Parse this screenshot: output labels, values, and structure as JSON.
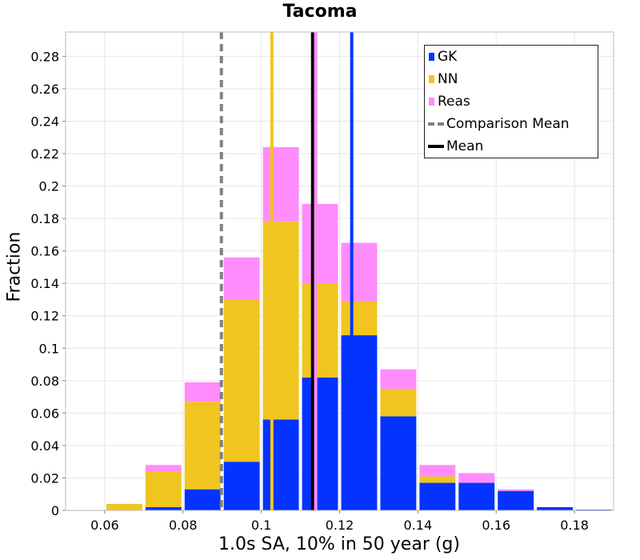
{
  "chart_data": {
    "type": "bar",
    "stacked": true,
    "title": "Tacoma",
    "xlabel": "1.0s SA, 10% in 50 year (g)",
    "ylabel": "Fraction",
    "xlim": [
      0.05,
      0.19
    ],
    "ylim": [
      0,
      0.295
    ],
    "bin_width": 0.01,
    "x": [
      0.065,
      0.075,
      0.085,
      0.095,
      0.105,
      0.115,
      0.125,
      0.135,
      0.145,
      0.155,
      0.165,
      0.175,
      0.185
    ],
    "series": [
      {
        "name": "GK",
        "color": "#0433ff",
        "values": [
          0.0,
          0.002,
          0.013,
          0.03,
          0.056,
          0.082,
          0.108,
          0.058,
          0.017,
          0.017,
          0.012,
          0.002,
          0.0005
        ]
      },
      {
        "name": "NN",
        "color": "#f0c520",
        "values": [
          0.004,
          0.022,
          0.054,
          0.1,
          0.122,
          0.058,
          0.021,
          0.017,
          0.004,
          0.0,
          0.0,
          0.0,
          0.0
        ]
      },
      {
        "name": "Reas",
        "color": "#ff8cfc",
        "values": [
          0.0,
          0.004,
          0.012,
          0.026,
          0.046,
          0.049,
          0.036,
          0.012,
          0.007,
          0.006,
          0.001,
          0.0,
          0.0
        ]
      }
    ],
    "vlines": [
      {
        "name": "Comparison Mean",
        "x": 0.0898,
        "color": "#808080",
        "style": "dashed",
        "in_legend": true
      },
      {
        "name": "Mean",
        "x": 0.1131,
        "color": "#000000",
        "style": "solid",
        "in_legend": true
      },
      {
        "name": "NN mean",
        "x": 0.1027,
        "color": "#f0c520",
        "style": "solid",
        "in_legend": false
      },
      {
        "name": "GK mean",
        "x": 0.1231,
        "color": "#0433ff",
        "style": "solid",
        "in_legend": false
      },
      {
        "name": "Reas mean",
        "x": 0.1139,
        "color": "#ff8cfc",
        "style": "solid",
        "in_legend": false
      }
    ],
    "xticks": [
      0.06,
      0.08,
      0.1,
      0.12,
      0.14,
      0.16,
      0.18
    ],
    "xtick_labels": [
      "0.06",
      "0.08",
      "0.1",
      "0.12",
      "0.14",
      "0.16",
      "0.18"
    ],
    "yticks": [
      0,
      0.02,
      0.04,
      0.06,
      0.08,
      0.1,
      0.12,
      0.14,
      0.16,
      0.18,
      0.2,
      0.22,
      0.24,
      0.26,
      0.28
    ],
    "ytick_labels": [
      "0",
      "0.02",
      "0.04",
      "0.06",
      "0.08",
      "0.1",
      "0.12",
      "0.14",
      "0.16",
      "0.18",
      "0.2",
      "0.22",
      "0.24",
      "0.26",
      "0.28"
    ],
    "grid": true,
    "legend": {
      "position": "top-right",
      "entries": [
        {
          "label": "GK",
          "kind": "box",
          "color": "#0433ff"
        },
        {
          "label": "NN",
          "kind": "box",
          "color": "#f0c520"
        },
        {
          "label": "Reas",
          "kind": "box",
          "color": "#ff8cfc"
        },
        {
          "label": "Comparison Mean",
          "kind": "dashed-line",
          "color": "#808080"
        },
        {
          "label": "Mean",
          "kind": "line",
          "color": "#000000"
        }
      ]
    }
  }
}
